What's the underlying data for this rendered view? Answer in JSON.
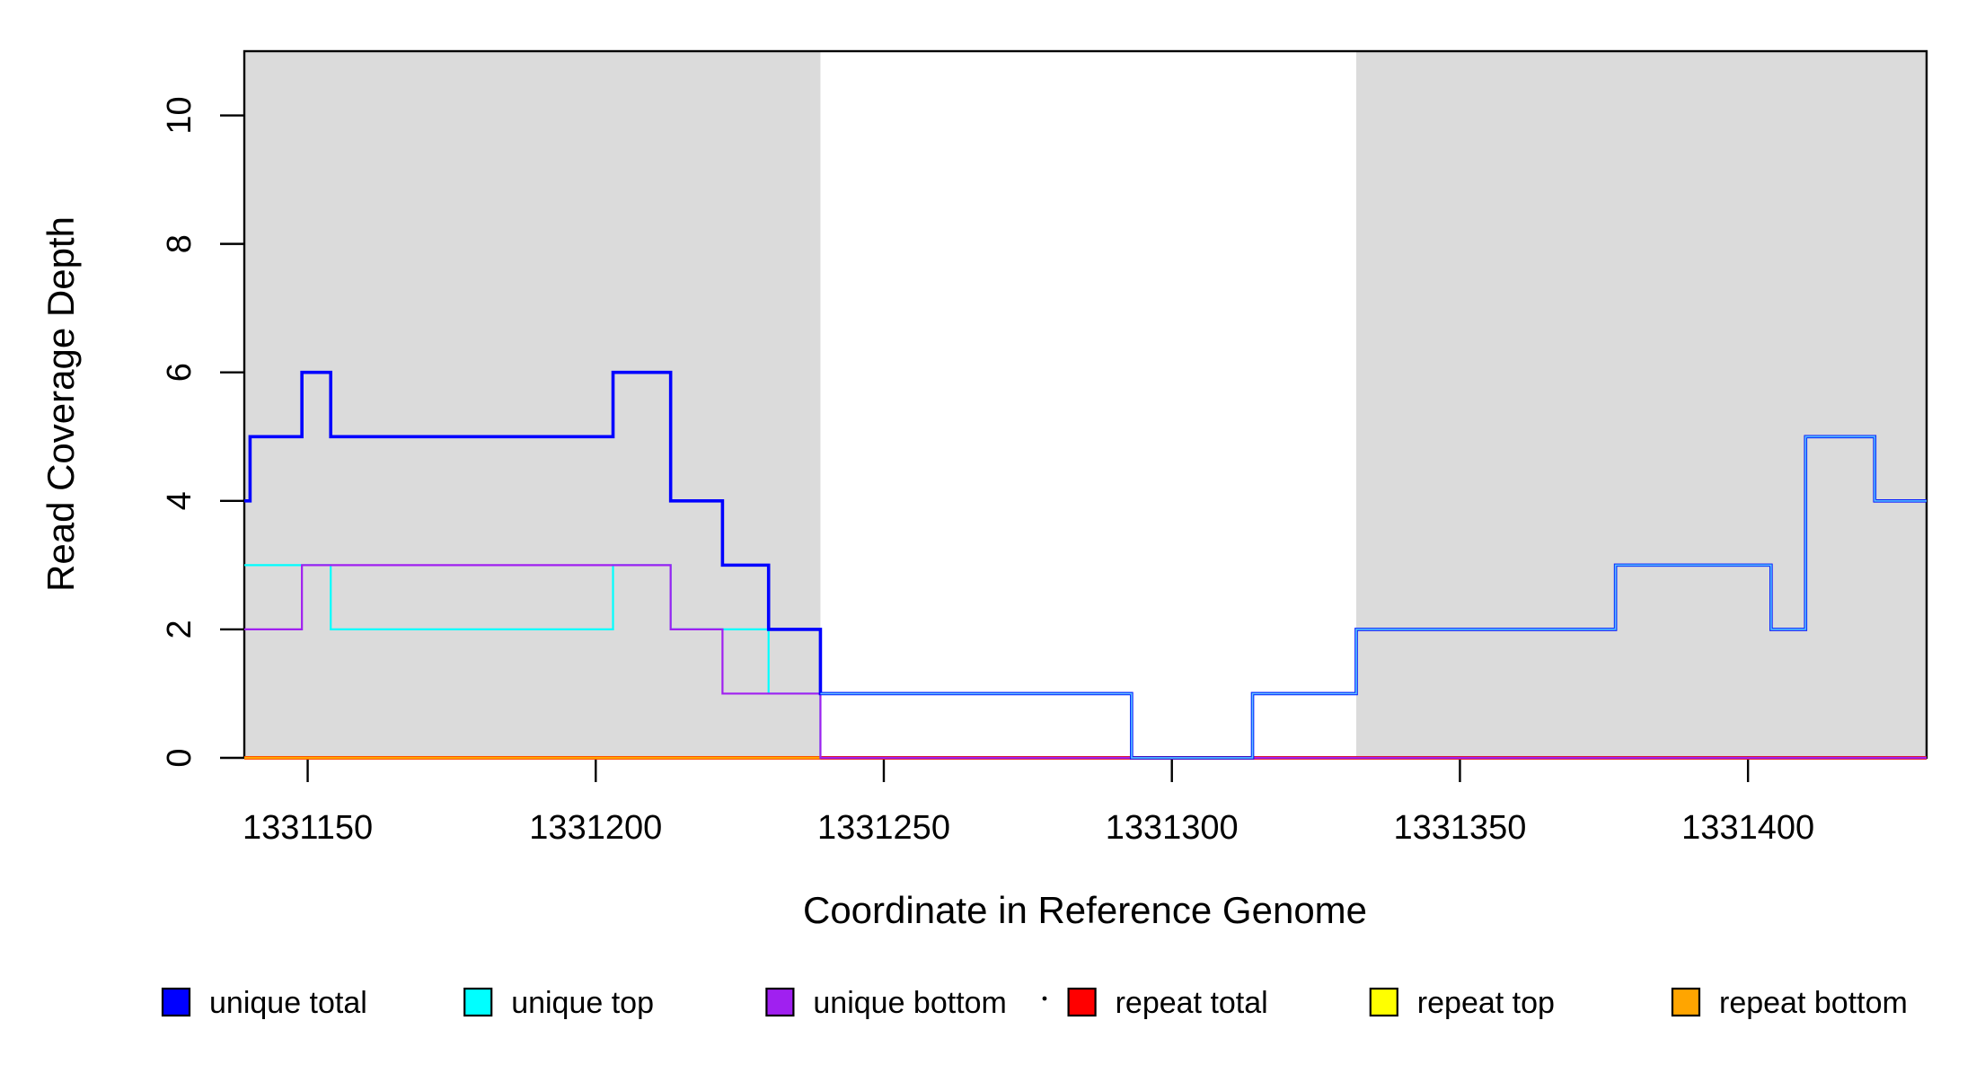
{
  "title": {
    "xlabel": "Coordinate in Reference Genome",
    "ylabel": "Read Coverage Depth"
  },
  "chart_data": {
    "type": "line",
    "step": true,
    "title": "",
    "xlabel": "Coordinate in Reference Genome",
    "ylabel": "Read Coverage Depth",
    "xlim": [
      1331139,
      1331431
    ],
    "ylim": [
      0,
      11
    ],
    "grid": false,
    "x_ticks": [
      1331150,
      1331200,
      1331250,
      1331300,
      1331350,
      1331400
    ],
    "y_ticks": [
      0,
      2,
      4,
      6,
      8,
      10
    ],
    "shade_color": "#DBDBDB",
    "shaded_regions": [
      {
        "name": "repeat-region-left",
        "x1": 1331139,
        "x2": 1331239
      },
      {
        "name": "repeat-region-right",
        "x1": 1331332,
        "x2": 1331431
      }
    ],
    "series": [
      {
        "name": "repeat top",
        "color": "#FFFF00",
        "width": 2.4,
        "end_x": 1331431,
        "points": [
          [
            1331139,
            0
          ]
        ]
      },
      {
        "name": "repeat total",
        "color": "#FF0000",
        "width": 4.0,
        "end_x": 1331431,
        "points": [
          [
            1331139,
            0
          ]
        ]
      },
      {
        "name": "repeat bottom",
        "color": "#FFA500",
        "width": 3.0,
        "end_x": 1331239,
        "points": [
          [
            1331139,
            0
          ]
        ]
      },
      {
        "name": "unique top",
        "color": "#00FFFF",
        "width": 2.2,
        "end_x": 1331431,
        "points": [
          [
            1331139,
            3
          ],
          [
            1331154,
            2
          ],
          [
            1331203,
            3
          ],
          [
            1331213,
            2
          ],
          [
            1331230,
            1
          ],
          [
            1331239,
            0
          ]
        ]
      },
      {
        "name": "unique bottom",
        "color": "#A020F0",
        "width": 2.2,
        "end_x": 1331431,
        "points": [
          [
            1331139,
            2
          ],
          [
            1331149,
            3
          ],
          [
            1331213,
            2
          ],
          [
            1331222,
            1
          ],
          [
            1331239,
            0
          ]
        ]
      },
      {
        "name": "unique total",
        "color": "#0000FF",
        "width": 3.6,
        "end_x": 1331431,
        "points": [
          [
            1331139,
            4
          ],
          [
            1331140,
            5
          ],
          [
            1331149,
            6
          ],
          [
            1331154,
            5
          ],
          [
            1331203,
            6
          ],
          [
            1331213,
            4
          ],
          [
            1331222,
            3
          ],
          [
            1331230,
            2
          ],
          [
            1331239,
            1
          ],
          [
            1331293,
            0
          ],
          [
            1331314,
            1
          ],
          [
            1331332,
            2
          ],
          [
            1331377,
            3
          ],
          [
            1331404,
            2
          ],
          [
            1331410,
            5
          ],
          [
            1331422,
            4
          ]
        ]
      },
      {
        "name": "unique total right overlay",
        "color": "#1E90FF",
        "width": 2.2,
        "end_x": 1331431,
        "points": [
          [
            1331239,
            1
          ],
          [
            1331293,
            0
          ],
          [
            1331314,
            1
          ],
          [
            1331332,
            2
          ],
          [
            1331377,
            3
          ],
          [
            1331404,
            2
          ],
          [
            1331410,
            5
          ],
          [
            1331422,
            4
          ]
        ]
      },
      {
        "name": "unique total right core",
        "color": "#6FBBFF",
        "width": 1.0,
        "end_x": 1331431,
        "points": [
          [
            1331239,
            1
          ],
          [
            1331293,
            0
          ],
          [
            1331314,
            1
          ],
          [
            1331332,
            2
          ],
          [
            1331377,
            3
          ],
          [
            1331404,
            2
          ],
          [
            1331410,
            5
          ],
          [
            1331422,
            4
          ]
        ]
      }
    ]
  },
  "legend": {
    "separator_dot": "·",
    "entries": [
      {
        "label": "unique total",
        "color": "#0000FF"
      },
      {
        "label": "unique top",
        "color": "#00FFFF"
      },
      {
        "label": "unique bottom",
        "color": "#A020F0"
      },
      {
        "label": "repeat total",
        "color": "#FF0000"
      },
      {
        "label": "repeat top",
        "color": "#FFFF00"
      },
      {
        "label": "repeat bottom",
        "color": "#FFA500"
      }
    ]
  }
}
